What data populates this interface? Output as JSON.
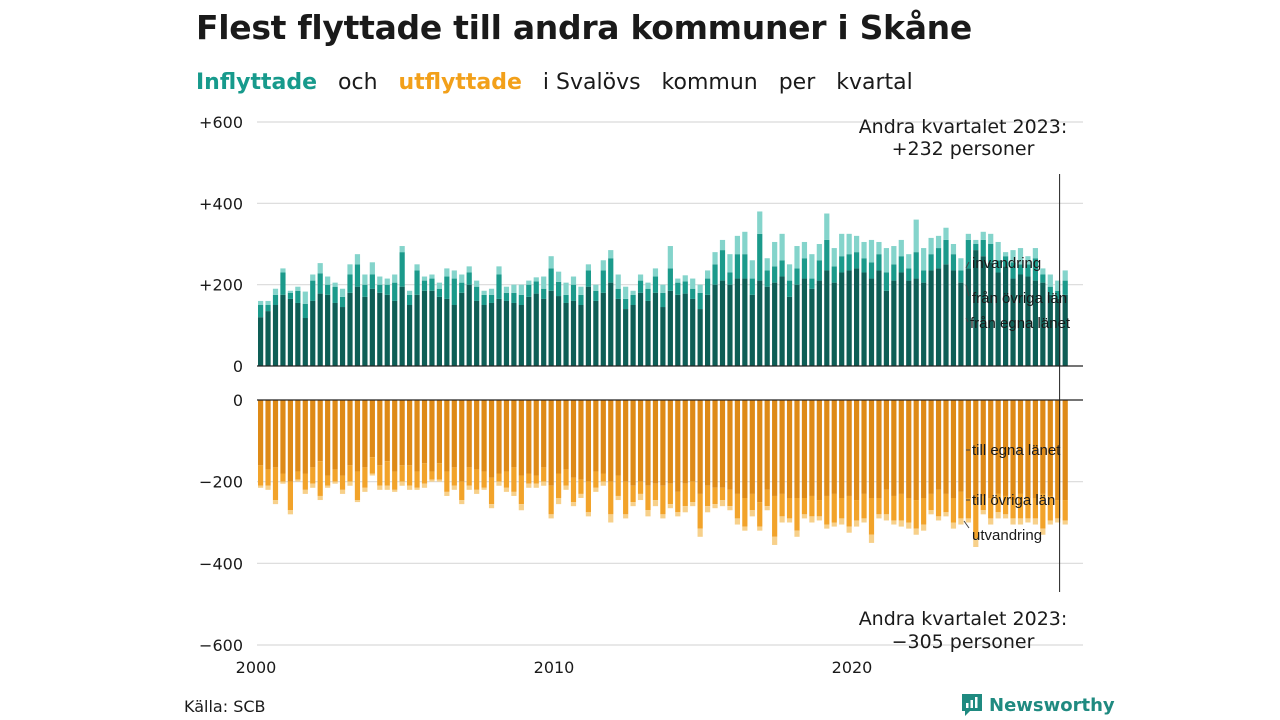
{
  "title": "Flest flyttade till andra kommuner i Skåne",
  "subtitle": {
    "part1": "Inflyttade",
    "part2": "och",
    "part3": "utflyttade",
    "part4": "i Svalövs",
    "part5": "kommun",
    "part6": "per",
    "part7": "kvartal"
  },
  "source": "Källa: SCB",
  "brand": {
    "name": "Newsworthy",
    "icon": "newsworthy-logo-icon",
    "color": "#1f8a80"
  },
  "colors": {
    "in_own": "#0e5e56",
    "in_other": "#1b9a8b",
    "in_imm": "#84d4cb",
    "out_own": "#de8a17",
    "out_other": "#f2a32a",
    "out_emig": "#f7d08a"
  },
  "chart_data": {
    "type": "bar",
    "stacked": true,
    "x_start_year": 2000,
    "x_unit": "quarter",
    "ylim": [
      -600,
      600
    ],
    "y_ticks": [
      "+600",
      "+400",
      "+200",
      "0",
      "0",
      "−200",
      "−400",
      "−600"
    ],
    "x_ticks": [
      "2000",
      "2010",
      "2020"
    ],
    "grid": true,
    "inflow": {
      "series": [
        {
          "name": "från egna länet",
          "values": [
            120,
            135,
            150,
            175,
            165,
            155,
            118,
            160,
            178,
            175,
            155,
            145,
            180,
            195,
            170,
            190,
            180,
            175,
            160,
            195,
            150,
            175,
            185,
            185,
            170,
            165,
            150,
            180,
            200,
            160,
            150,
            155,
            165,
            160,
            155,
            150,
            170,
            178,
            165,
            185,
            172,
            155,
            160,
            150,
            195,
            160,
            180,
            205,
            165,
            140,
            150,
            180,
            160,
            180,
            145,
            185,
            175,
            178,
            165,
            140,
            175,
            200,
            210,
            200,
            215,
            215,
            175,
            210,
            195,
            205,
            220,
            170,
            200,
            215,
            190,
            210,
            235,
            205,
            230,
            235,
            240,
            230,
            215,
            235,
            185,
            210,
            230,
            210,
            215,
            205,
            235,
            240,
            250,
            235,
            205,
            240,
            285,
            270,
            255,
            230,
            245,
            215,
            225,
            220,
            210,
            205,
            175,
            165,
            175
          ]
        },
        {
          "name": "från övriga län",
          "values": [
            30,
            15,
            25,
            55,
            15,
            30,
            35,
            50,
            50,
            25,
            40,
            25,
            45,
            55,
            30,
            35,
            20,
            25,
            45,
            85,
            25,
            60,
            25,
            30,
            20,
            55,
            65,
            25,
            30,
            35,
            25,
            20,
            60,
            20,
            25,
            25,
            30,
            30,
            25,
            55,
            35,
            20,
            40,
            25,
            40,
            25,
            55,
            60,
            25,
            25,
            25,
            30,
            30,
            40,
            35,
            55,
            30,
            30,
            25,
            40,
            40,
            50,
            75,
            30,
            60,
            60,
            40,
            115,
            40,
            40,
            40,
            40,
            40,
            50,
            25,
            50,
            75,
            40,
            40,
            40,
            40,
            35,
            40,
            40,
            45,
            40,
            40,
            30,
            65,
            30,
            40,
            50,
            60,
            40,
            30,
            70,
            15,
            40,
            45,
            30,
            25,
            40,
            25,
            30,
            55,
            20,
            20,
            20,
            35
          ]
        },
        {
          "name": "invandring",
          "values": [
            10,
            10,
            15,
            10,
            5,
            10,
            30,
            15,
            25,
            20,
            10,
            20,
            25,
            25,
            25,
            30,
            20,
            15,
            20,
            15,
            10,
            15,
            10,
            10,
            15,
            20,
            20,
            20,
            15,
            15,
            10,
            15,
            20,
            15,
            20,
            25,
            10,
            10,
            30,
            30,
            25,
            30,
            20,
            20,
            15,
            15,
            25,
            20,
            35,
            30,
            10,
            15,
            15,
            20,
            20,
            55,
            10,
            15,
            25,
            20,
            20,
            30,
            25,
            45,
            45,
            55,
            45,
            55,
            30,
            60,
            65,
            40,
            55,
            40,
            60,
            40,
            65,
            45,
            55,
            50,
            40,
            40,
            55,
            30,
            60,
            45,
            40,
            35,
            80,
            55,
            40,
            30,
            30,
            25,
            30,
            15,
            10,
            20,
            25,
            45,
            10,
            30,
            40,
            20,
            25,
            15,
            30,
            25,
            25
          ]
        }
      ]
    },
    "outflow": {
      "series": [
        {
          "name": "till egna länet",
          "values": [
            160,
            170,
            165,
            180,
            200,
            175,
            180,
            165,
            150,
            185,
            170,
            185,
            160,
            175,
            165,
            140,
            160,
            150,
            175,
            160,
            160,
            175,
            155,
            175,
            155,
            175,
            165,
            200,
            165,
            170,
            175,
            190,
            180,
            175,
            165,
            185,
            180,
            185,
            165,
            210,
            180,
            170,
            190,
            195,
            200,
            175,
            180,
            200,
            185,
            200,
            210,
            200,
            210,
            205,
            210,
            205,
            225,
            205,
            200,
            230,
            210,
            215,
            215,
            220,
            230,
            240,
            230,
            250,
            220,
            235,
            230,
            240,
            240,
            240,
            235,
            245,
            235,
            230,
            240,
            235,
            245,
            230,
            240,
            240,
            220,
            235,
            230,
            240,
            245,
            240,
            230,
            220,
            230,
            240,
            225,
            240,
            245,
            235,
            240,
            230,
            235,
            245,
            230,
            240,
            240,
            230,
            235,
            245,
            245
          ]
        },
        {
          "name": "till övriga län",
          "values": [
            50,
            40,
            80,
            20,
            70,
            20,
            40,
            40,
            85,
            25,
            30,
            35,
            40,
            70,
            50,
            40,
            50,
            60,
            45,
            40,
            50,
            40,
            50,
            20,
            40,
            50,
            45,
            45,
            45,
            50,
            40,
            65,
            20,
            40,
            60,
            70,
            25,
            20,
            35,
            70,
            60,
            40,
            60,
            35,
            75,
            40,
            20,
            80,
            50,
            80,
            40,
            30,
            60,
            40,
            70,
            50,
            50,
            55,
            50,
            85,
            50,
            40,
            30,
            40,
            60,
            70,
            40,
            60,
            40,
            100,
            55,
            50,
            80,
            40,
            50,
            40,
            70,
            70,
            50,
            75,
            50,
            60,
            90,
            40,
            60,
            60,
            65,
            60,
            70,
            65,
            40,
            65,
            45,
            60,
            65,
            50,
            95,
            35,
            50,
            45,
            45,
            45,
            60,
            50,
            50,
            85,
            60,
            45,
            50
          ]
        },
        {
          "name": "utvandring",
          "values": [
            5,
            10,
            10,
            5,
            10,
            5,
            10,
            10,
            10,
            5,
            5,
            10,
            10,
            5,
            10,
            5,
            10,
            10,
            5,
            10,
            10,
            5,
            10,
            5,
            5,
            10,
            10,
            10,
            10,
            10,
            5,
            10,
            10,
            10,
            10,
            15,
            10,
            10,
            10,
            10,
            15,
            10,
            10,
            10,
            10,
            10,
            10,
            20,
            10,
            10,
            10,
            15,
            15,
            15,
            10,
            10,
            10,
            15,
            10,
            20,
            15,
            10,
            15,
            10,
            15,
            10,
            15,
            10,
            10,
            20,
            15,
            10,
            15,
            10,
            15,
            10,
            10,
            10,
            15,
            15,
            15,
            10,
            20,
            10,
            15,
            10,
            15,
            15,
            15,
            15,
            10,
            10,
            10,
            15,
            15,
            10,
            20,
            10,
            15,
            15,
            10,
            15,
            15,
            10,
            15,
            15,
            10,
            10,
            10
          ]
        }
      ]
    },
    "segment_labels_in": [
      "invandring",
      "från övriga län",
      "från egna länet"
    ],
    "segment_labels_out": [
      "till egna länet",
      "till övriga län",
      "utvandring"
    ],
    "annotation_top": {
      "line1": "Andra kvartalet 2023:",
      "line2": "+232 personer",
      "value": 232
    },
    "annotation_bottom": {
      "line1": "Andra kvartalet 2023:",
      "line2": "−305 personer",
      "value": -305
    }
  }
}
